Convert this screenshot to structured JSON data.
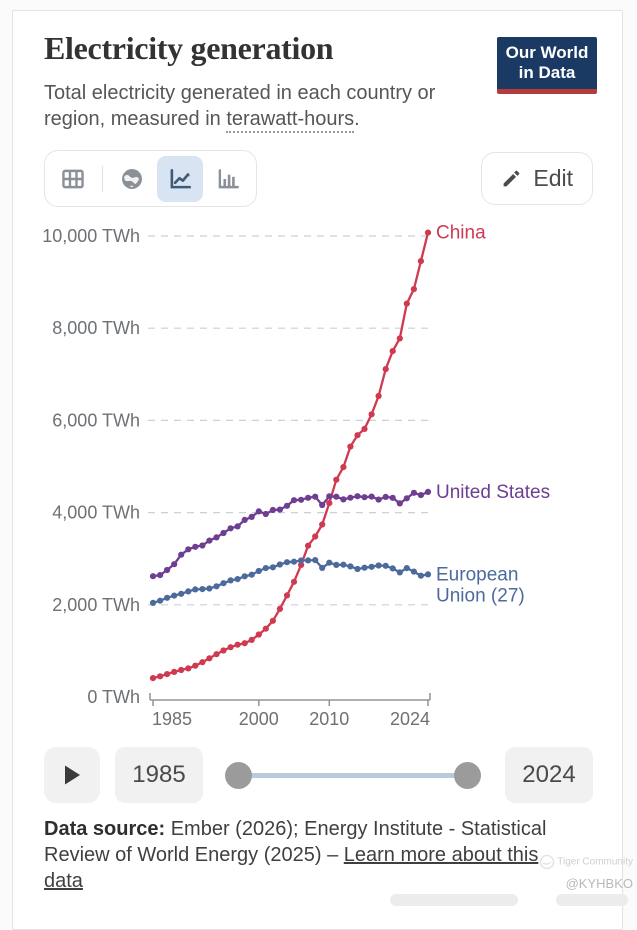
{
  "header": {
    "title": "Electricity generation",
    "logo": {
      "line1": "Our World",
      "line2": "in Data"
    }
  },
  "subtitle": {
    "prefix": "Total electricity generated in each country or region, measured in ",
    "term": "terawatt-hours",
    "suffix": "."
  },
  "toolbar": {
    "views": [
      {
        "icon": "table-icon",
        "active": false
      },
      {
        "icon": "globe-icon",
        "active": false
      },
      {
        "icon": "line-chart-icon",
        "active": true
      },
      {
        "icon": "bar-chart-icon",
        "active": false
      }
    ],
    "edit_icon": "pencil-icon",
    "edit_label": "Edit"
  },
  "chart_data": {
    "type": "line",
    "title": "Electricity generation",
    "unit": "TWh",
    "grid": "dashed-horizontal",
    "legend_position": "end-of-line-labels",
    "ylim": [
      0,
      10000
    ],
    "yticks": [
      0,
      2000,
      4000,
      6000,
      8000,
      10000
    ],
    "ytick_labels": [
      "0 TWh",
      "2,000 TWh",
      "4,000 TWh",
      "6,000 TWh",
      "8,000 TWh",
      "10,000 TWh"
    ],
    "xticks": [
      1985,
      2000,
      2010,
      2024
    ],
    "xtick_labels": [
      "1985",
      "2000",
      "2010",
      "2024"
    ],
    "x": [
      1985,
      1986,
      1987,
      1988,
      1989,
      1990,
      1991,
      1992,
      1993,
      1994,
      1995,
      1996,
      1997,
      1998,
      1999,
      2000,
      2001,
      2002,
      2003,
      2004,
      2005,
      2006,
      2007,
      2008,
      2009,
      2010,
      2011,
      2012,
      2013,
      2014,
      2015,
      2016,
      2017,
      2018,
      2019,
      2020,
      2021,
      2022,
      2023,
      2024
    ],
    "series": [
      {
        "name": "China",
        "label_lines": [
          "China"
        ],
        "color": "#cf3a50",
        "values": [
          411,
          450,
          497,
          545,
          585,
          621,
          678,
          754,
          839,
          928,
          1008,
          1081,
          1135,
          1166,
          1239,
          1356,
          1481,
          1654,
          1911,
          2203,
          2500,
          2866,
          3282,
          3482,
          3742,
          4207,
          4713,
          4988,
          5432,
          5680,
          5815,
          6133,
          6529,
          7112,
          7503,
          7779,
          8534,
          8849,
          9456,
          10073
        ]
      },
      {
        "name": "United States",
        "label_lines": [
          "United States"
        ],
        "color": "#6d3e91",
        "values": [
          2621,
          2644,
          2754,
          2880,
          3086,
          3203,
          3259,
          3287,
          3392,
          3462,
          3558,
          3659,
          3700,
          3841,
          3907,
          4026,
          3970,
          4056,
          4066,
          4148,
          4268,
          4277,
          4322,
          4344,
          4165,
          4354,
          4344,
          4287,
          4324,
          4356,
          4333,
          4347,
          4282,
          4340,
          4320,
          4200,
          4310,
          4430,
          4380,
          4450
        ]
      },
      {
        "name": "European Union (27)",
        "label_lines": [
          "European",
          "Union (27)"
        ],
        "color": "#4c6a9c",
        "values": [
          2041,
          2088,
          2152,
          2199,
          2239,
          2290,
          2335,
          2341,
          2353,
          2401,
          2468,
          2530,
          2557,
          2618,
          2654,
          2734,
          2796,
          2814,
          2874,
          2923,
          2934,
          2962,
          2964,
          2969,
          2800,
          2914,
          2866,
          2869,
          2833,
          2776,
          2805,
          2824,
          2853,
          2845,
          2790,
          2702,
          2796,
          2720,
          2631,
          2660
        ]
      }
    ]
  },
  "timeline": {
    "play_icon": "play-triangle-icon",
    "start_year": "1985",
    "end_year": "2024"
  },
  "footer": {
    "label": "Data source:",
    "text": " Ember (2026); Energy Institute - Statistical Review of World Energy (2025) – ",
    "link": "Learn more about this data"
  },
  "watermark": {
    "brand": "Tiger Community",
    "handle": "@KYHBKO"
  },
  "colors": {
    "accent_active_tab_bg": "#d8e4f1",
    "logo_navy": "#1a3a63",
    "logo_red": "#b53c3c",
    "gridline": "#cbd0d5",
    "axis": "#8f9498"
  }
}
